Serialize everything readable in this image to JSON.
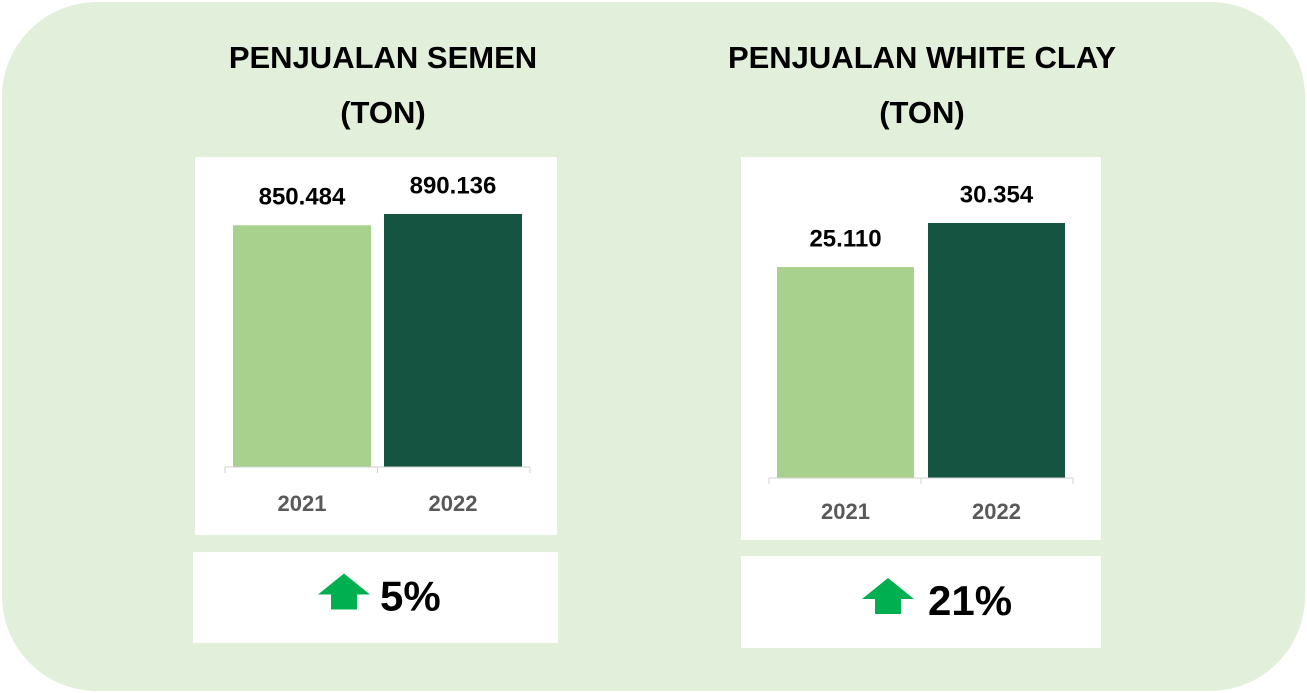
{
  "chart_data": [
    {
      "type": "bar",
      "title": "PENJUALAN SEMEN (TON)",
      "categories": [
        "2021",
        "2022"
      ],
      "values": [
        850484,
        890136
      ],
      "value_labels": [
        "850.484",
        "890.136"
      ],
      "colors": [
        "#a9d18e",
        "#145440"
      ],
      "annotation": "5%"
    },
    {
      "type": "bar",
      "title": "PENJUALAN WHITE CLAY (TON)",
      "categories": [
        "2021",
        "2022"
      ],
      "values": [
        25110,
        30354
      ],
      "value_labels": [
        "25.110",
        "30.354"
      ],
      "colors": [
        "#a9d18e",
        "#145440"
      ],
      "annotation": "21%"
    }
  ]
}
